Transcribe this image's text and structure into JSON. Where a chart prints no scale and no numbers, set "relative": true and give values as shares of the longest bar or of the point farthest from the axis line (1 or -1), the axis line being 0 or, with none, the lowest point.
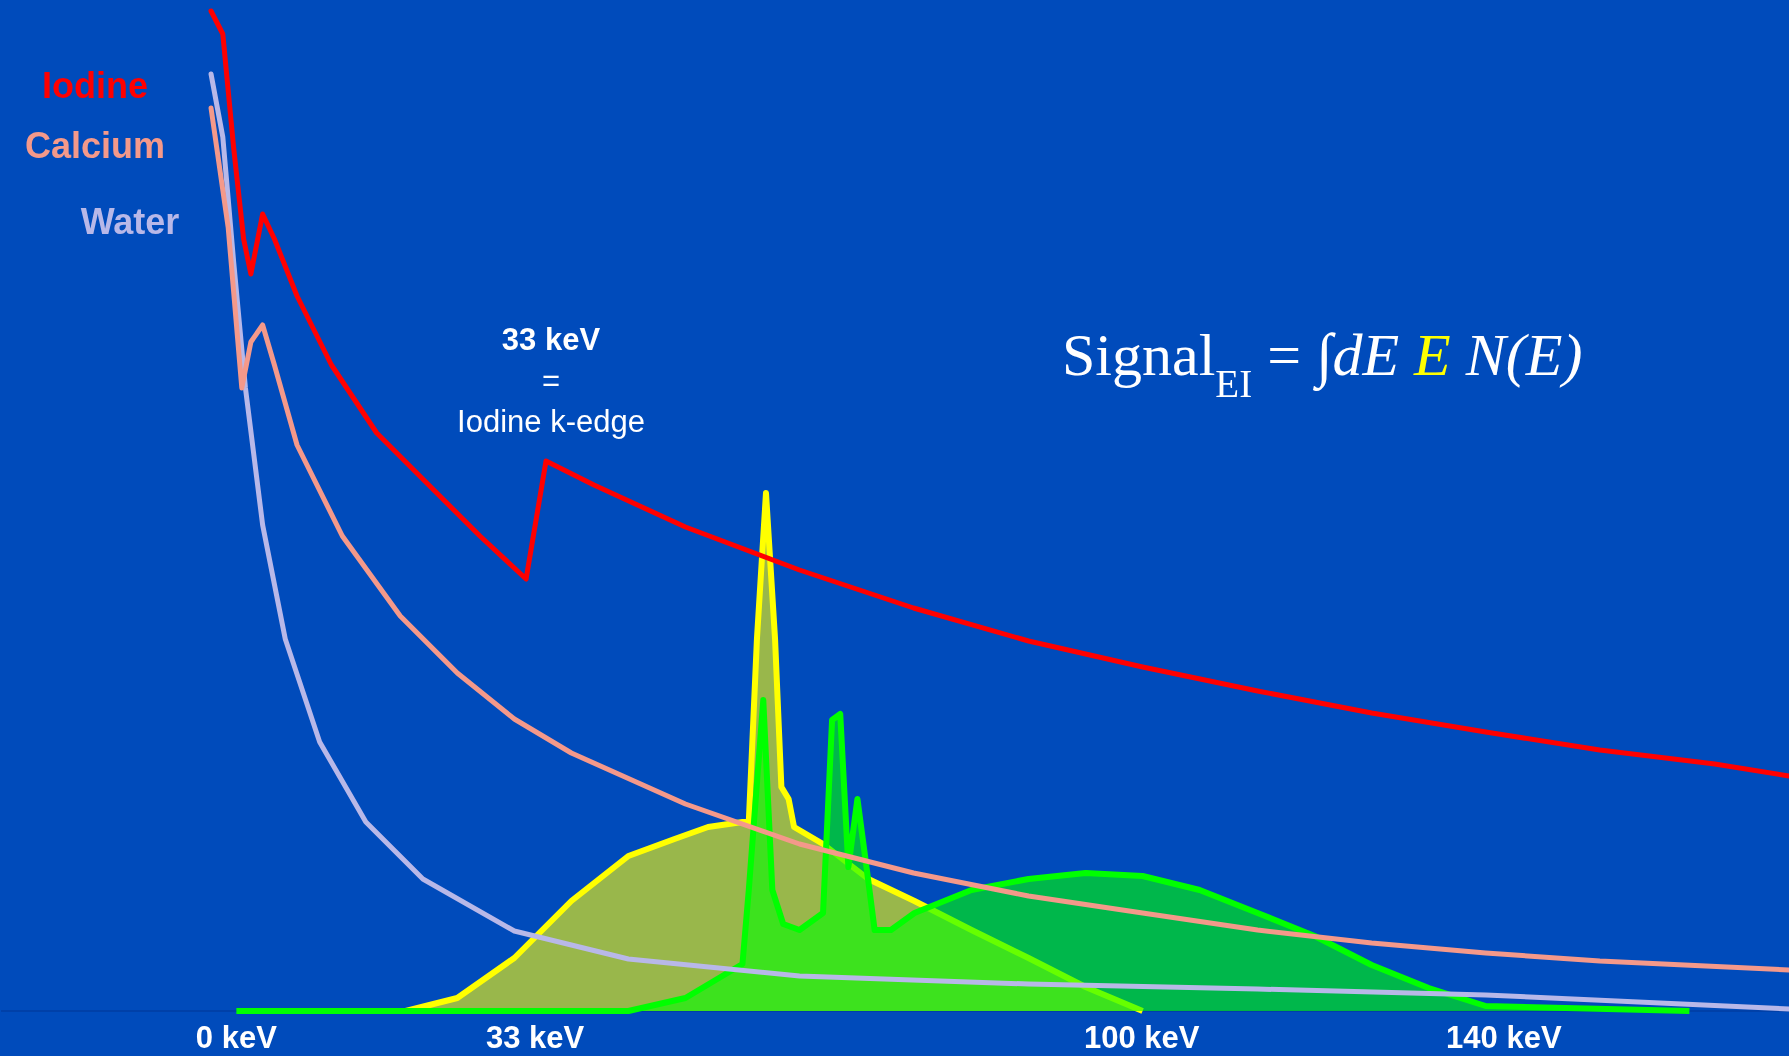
{
  "chart_data": {
    "type": "line",
    "relative": true,
    "legend": "top left",
    "tick_labels": "x",
    "grid": false,
    "marker": "none",
    "line_style": "solid",
    "xlim": [
      -26,
      171.5
    ],
    "xticks": [
      {
        "value": 0,
        "label": "0 keV"
      },
      {
        "value": 33,
        "label": "33 keV"
      },
      {
        "value": 100,
        "label": "100 keV"
      },
      {
        "value": 140,
        "label": "140 keV"
      }
    ],
    "annotations": [
      "33 keV\n=\nIodine k-edge",
      "Signal$_{EI}$ = ∫dE E N(E)"
    ],
    "series": [
      {
        "type": "area",
        "color": "#ffff00",
        "x": [
          18.7,
          24.4,
          30.7,
          37,
          43.3,
          48.4,
          52.1,
          55.9,
          56.6,
          57.5,
          58.5,
          59.5,
          60.2,
          61,
          61.6,
          64.8,
          69.8,
          74.9,
          81.2,
          87.5,
          93.8,
          100.1
        ],
        "values": [
          0,
          0.013,
          0.053,
          0.11,
          0.155,
          0.172,
          0.184,
          0.189,
          0.189,
          0.372,
          0.518,
          0.372,
          0.224,
          0.212,
          0.184,
          0.167,
          0.132,
          0.11,
          0.081,
          0.053,
          0.024,
          0
        ]
      },
      {
        "type": "area",
        "color": "#00ff00",
        "x": [
          0,
          43.3,
          49.6,
          55.9,
          56.6,
          58.2,
          59.2,
          60.4,
          62.2,
          64.8,
          65.8,
          66.7,
          67.6,
          68.6,
          69.6,
          70.5,
          72.3,
          74.9,
          81.2,
          87.5,
          93.8,
          100.1,
          106.4,
          112.8,
          119.1,
          125.4,
          131.7,
          138,
          160.5
        ],
        "values": [
          0,
          0,
          0.013,
          0.047,
          0.121,
          0.311,
          0.121,
          0.087,
          0.081,
          0.098,
          0.291,
          0.297,
          0.144,
          0.212,
          0.144,
          0.081,
          0.081,
          0.098,
          0.121,
          0.132,
          0.138,
          0.135,
          0.121,
          0.098,
          0.075,
          0.046,
          0.023,
          0.005,
          0
        ]
      },
      {
        "name": "Water",
        "color": "#b8b8e8",
        "x": [
          -2.8,
          -1.5,
          -0.3,
          1.0,
          2.9,
          5.4,
          9.2,
          14.3,
          20.6,
          30.7,
          43.3,
          62.2,
          87.5,
          112.8,
          138,
          171.5
        ],
        "values": [
          0.937,
          0.874,
          0.749,
          0.623,
          0.486,
          0.372,
          0.269,
          0.189,
          0.132,
          0.08,
          0.052,
          0.035,
          0.027,
          0.022,
          0.016,
          0.002
        ]
      },
      {
        "name": "Calcium",
        "color": "#f4998a",
        "x": [
          -2.8,
          -0.9,
          0.6,
          1.6,
          2.9,
          4.2,
          6.7,
          11.7,
          18.1,
          24.4,
          30.7,
          37,
          49.6,
          62.2,
          74.8,
          87.5,
          100.1,
          112.8,
          125.4,
          138,
          150.6,
          171.5
        ],
        "values": [
          0.903,
          0.783,
          0.623,
          0.669,
          0.686,
          0.646,
          0.566,
          0.475,
          0.395,
          0.338,
          0.292,
          0.258,
          0.207,
          0.167,
          0.138,
          0.115,
          0.098,
          0.081,
          0.068,
          0.058,
          0.05,
          0.041
        ]
      },
      {
        "name": "Iodine",
        "color": "#ff0000",
        "x": [
          -2.8,
          -1.5,
          -0.3,
          0.8,
          1.6,
          2.9,
          4.2,
          6.7,
          10.5,
          15.5,
          21.8,
          26.9,
          32,
          34.2,
          39.5,
          49.6,
          62.2,
          74.8,
          87.5,
          100.1,
          112.8,
          125.4,
          138,
          150.6,
          163.3,
          171.5
        ],
        "values": [
          1.0,
          0.977,
          0.863,
          0.772,
          0.737,
          0.797,
          0.772,
          0.715,
          0.646,
          0.578,
          0.521,
          0.475,
          0.432,
          0.55,
          0.526,
          0.484,
          0.441,
          0.403,
          0.37,
          0.344,
          0.32,
          0.298,
          0.279,
          0.261,
          0.247,
          0.235
        ]
      }
    ]
  }
}
